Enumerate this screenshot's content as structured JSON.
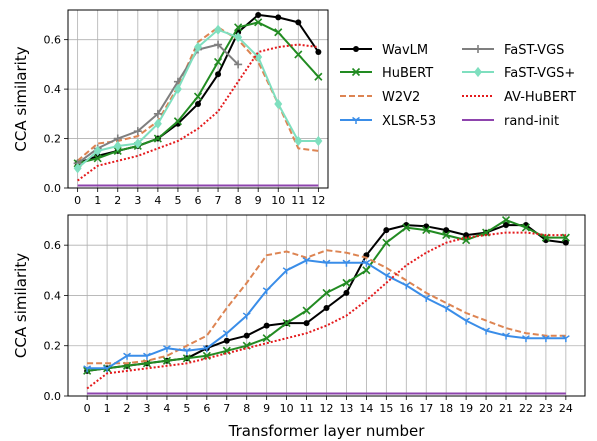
{
  "chart_data": [
    {
      "type": "line",
      "xlabel": "",
      "ylabel": "CCA similarity",
      "xlim": [
        0,
        12
      ],
      "ylim": [
        0,
        0.72
      ],
      "x_ticks": [
        "0",
        "1",
        "2",
        "3",
        "4",
        "5",
        "6",
        "7",
        "8",
        "9",
        "10",
        "11",
        "12"
      ],
      "y_ticks": [
        "0.0",
        "0.2",
        "0.4",
        "0.6"
      ],
      "y_tick_values": [
        0,
        0.2,
        0.4,
        0.6
      ],
      "grid": true,
      "x": [
        0,
        1,
        2,
        3,
        4,
        5,
        6,
        7,
        8,
        9,
        10,
        11,
        12
      ],
      "series": [
        {
          "name": "WavLM",
          "values": [
            0.1,
            0.13,
            0.15,
            0.17,
            0.2,
            0.26,
            0.34,
            0.46,
            0.63,
            0.7,
            0.69,
            0.67,
            0.55
          ]
        },
        {
          "name": "HuBERT",
          "values": [
            0.1,
            0.12,
            0.15,
            0.17,
            0.2,
            0.27,
            0.37,
            0.51,
            0.65,
            0.67,
            0.63,
            0.54,
            0.45
          ]
        },
        {
          "name": "W2V2",
          "values": [
            0.11,
            0.18,
            0.19,
            0.21,
            0.27,
            0.41,
            0.59,
            0.65,
            0.6,
            0.51,
            0.34,
            0.16,
            0.15
          ]
        },
        {
          "name": "FaST-VGS",
          "values": [
            0.1,
            0.16,
            0.2,
            0.23,
            0.3,
            0.43,
            0.56,
            0.58,
            0.5,
            null,
            null,
            null,
            null
          ]
        },
        {
          "name": "FaST-VGS+",
          "values": [
            0.08,
            0.15,
            0.17,
            0.18,
            0.26,
            0.4,
            0.57,
            0.64,
            0.61,
            0.53,
            0.34,
            0.19,
            0.19
          ]
        },
        {
          "name": "AV-HuBERT",
          "values": [
            0.03,
            0.09,
            0.11,
            0.13,
            0.16,
            0.19,
            0.24,
            0.31,
            0.43,
            0.55,
            0.57,
            0.58,
            0.57
          ]
        },
        {
          "name": "rand-init",
          "values": [
            0.01,
            0.01,
            0.01,
            0.01,
            0.01,
            0.01,
            0.01,
            0.01,
            0.01,
            0.01,
            0.01,
            0.01,
            0.01
          ]
        }
      ]
    },
    {
      "type": "line",
      "xlabel": "Transformer layer number",
      "ylabel": "CCA similarity",
      "xlim": [
        0,
        24
      ],
      "ylim": [
        0,
        0.72
      ],
      "x_ticks": [
        "0",
        "1",
        "2",
        "3",
        "4",
        "5",
        "6",
        "7",
        "8",
        "9",
        "10",
        "11",
        "12",
        "13",
        "14",
        "15",
        "16",
        "17",
        "18",
        "19",
        "20",
        "21",
        "22",
        "23",
        "24"
      ],
      "y_ticks": [
        "0.0",
        "0.2",
        "0.4",
        "0.6"
      ],
      "y_tick_values": [
        0,
        0.2,
        0.4,
        0.6
      ],
      "grid": true,
      "x": [
        0,
        1,
        2,
        3,
        4,
        5,
        6,
        7,
        8,
        9,
        10,
        11,
        12,
        13,
        14,
        15,
        16,
        17,
        18,
        19,
        20,
        21,
        22,
        23,
        24
      ],
      "series": [
        {
          "name": "WavLM",
          "values": [
            0.1,
            0.11,
            0.12,
            0.13,
            0.14,
            0.15,
            0.19,
            0.22,
            0.24,
            0.28,
            0.29,
            0.29,
            0.35,
            0.41,
            0.56,
            0.66,
            0.68,
            0.675,
            0.66,
            0.64,
            0.65,
            0.68,
            0.68,
            0.62,
            0.61
          ]
        },
        {
          "name": "HuBERT",
          "values": [
            0.1,
            0.11,
            0.12,
            0.13,
            0.14,
            0.15,
            0.16,
            0.18,
            0.2,
            0.23,
            0.29,
            0.34,
            0.41,
            0.45,
            0.5,
            0.61,
            0.67,
            0.66,
            0.64,
            0.62,
            0.65,
            0.7,
            0.67,
            0.63,
            0.63
          ]
        },
        {
          "name": "W2V2",
          "values": [
            0.13,
            0.13,
            0.13,
            0.14,
            0.16,
            0.2,
            0.24,
            0.35,
            0.45,
            0.56,
            0.575,
            0.55,
            0.58,
            0.57,
            0.55,
            0.51,
            0.46,
            0.41,
            0.37,
            0.33,
            0.3,
            0.27,
            0.25,
            0.24,
            0.24
          ]
        },
        {
          "name": "XLSR-53",
          "values": [
            0.11,
            0.11,
            0.16,
            0.16,
            0.19,
            0.18,
            0.19,
            0.25,
            0.32,
            0.42,
            0.5,
            0.54,
            0.53,
            0.53,
            0.53,
            0.48,
            0.44,
            0.39,
            0.35,
            0.3,
            0.26,
            0.24,
            0.23,
            0.23,
            0.23
          ]
        },
        {
          "name": "AV-HuBERT",
          "values": [
            0.03,
            0.09,
            0.1,
            0.11,
            0.12,
            0.13,
            0.15,
            0.17,
            0.19,
            0.21,
            0.23,
            0.25,
            0.28,
            0.32,
            0.38,
            0.45,
            0.52,
            0.57,
            0.61,
            0.63,
            0.64,
            0.65,
            0.65,
            0.64,
            0.64
          ]
        },
        {
          "name": "rand-init",
          "values": [
            0.01,
            0.01,
            0.01,
            0.01,
            0.01,
            0.01,
            0.01,
            0.01,
            0.01,
            0.01,
            0.01,
            0.01,
            0.01,
            0.01,
            0.01,
            0.01,
            0.01,
            0.01,
            0.01,
            0.01,
            0.01,
            0.01,
            0.01,
            0.01,
            0.01
          ]
        }
      ]
    }
  ],
  "legend": {
    "placement": "right of top panel",
    "entries": [
      {
        "name": "WavLM",
        "color": "#000000",
        "dash": "solid",
        "marker": "dot"
      },
      {
        "name": "FaST-VGS",
        "color": "#7f7f7f",
        "dash": "solid",
        "marker": "plus"
      },
      {
        "name": "HuBERT",
        "color": "#228b22",
        "dash": "solid",
        "marker": "x"
      },
      {
        "name": "FaST-VGS+",
        "color": "#7fdfbf",
        "dash": "solid",
        "marker": "diamond"
      },
      {
        "name": "W2V2",
        "color": "#dd8452",
        "dash": "dashed",
        "marker": "none"
      },
      {
        "name": "AV-HuBERT",
        "color": "#e41a1c",
        "dash": "dotted",
        "marker": "none"
      },
      {
        "name": "XLSR-53",
        "color": "#3a8de8",
        "dash": "solid",
        "marker": "tri_down"
      },
      {
        "name": "rand-init",
        "color": "#8e44ad",
        "dash": "solid",
        "marker": "none"
      }
    ]
  }
}
